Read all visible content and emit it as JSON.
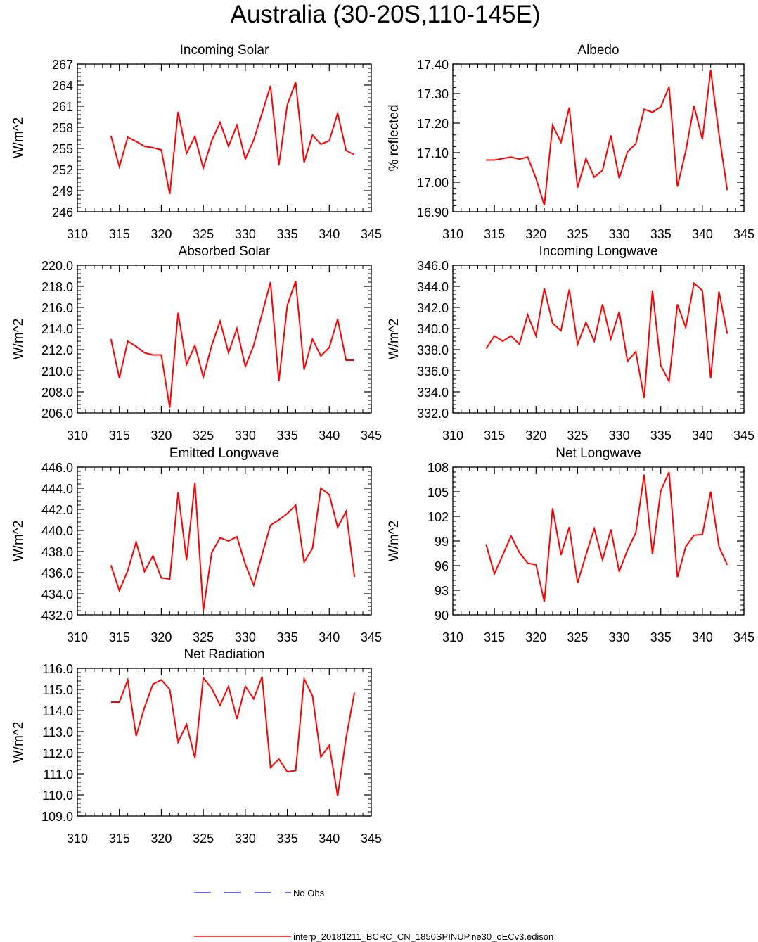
{
  "title": "Australia (30-20S,110-145E)",
  "line_color": "#ff0000",
  "obs_color": "#3333ff",
  "legend": {
    "obs_label": "No Obs",
    "model_label": "interp_20181211_BCRC_CN_1850SPINUP.ne30_oECv3.edison"
  },
  "chart_data": [
    {
      "type": "line",
      "title": "Incoming Solar",
      "ylabel": "W/m^2",
      "xlim": [
        310,
        345
      ],
      "xticks": [
        "310",
        "315",
        "320",
        "325",
        "330",
        "335",
        "340",
        "345"
      ],
      "ylim": [
        246,
        267
      ],
      "yticks": [
        "246",
        "249",
        "252",
        "255",
        "258",
        "261",
        "264",
        "267"
      ],
      "x": [
        314,
        315,
        316,
        317,
        318,
        319,
        320,
        321,
        322,
        323,
        324,
        325,
        326,
        327,
        328,
        329,
        330,
        331,
        332,
        333,
        334,
        335,
        336,
        337,
        338,
        339,
        340,
        341,
        342,
        343
      ],
      "series": [
        {
          "values": [
            256.8,
            252.4,
            256.6,
            256.0,
            255.3,
            255.1,
            254.8,
            248.5,
            260.2,
            254.3,
            256.7,
            252.2,
            256.1,
            258.7,
            255.3,
            258.3,
            253.5,
            256.2,
            260.0,
            263.9,
            252.6,
            261.2,
            264.4,
            253.0,
            256.9,
            255.6,
            256.1,
            260.0,
            254.7,
            254.1
          ]
        }
      ]
    },
    {
      "type": "line",
      "title": "Albedo",
      "ylabel": "% reflected",
      "xlim": [
        310,
        345
      ],
      "xticks": [
        "310",
        "315",
        "320",
        "325",
        "330",
        "335",
        "340",
        "345"
      ],
      "ylim": [
        16.9,
        17.4
      ],
      "yticks": [
        "16.90",
        "17.00",
        "17.10",
        "17.20",
        "17.30",
        "17.40"
      ],
      "x": [
        314,
        315,
        316,
        317,
        318,
        319,
        320,
        321,
        322,
        323,
        324,
        325,
        326,
        327,
        328,
        329,
        330,
        331,
        332,
        333,
        334,
        335,
        336,
        337,
        338,
        339,
        340,
        341,
        342,
        343
      ],
      "series": [
        {
          "values": [
            17.075,
            17.075,
            17.08,
            17.085,
            17.078,
            17.085,
            17.013,
            16.922,
            17.193,
            17.135,
            17.253,
            16.982,
            17.08,
            17.017,
            17.04,
            17.158,
            17.013,
            17.103,
            17.13,
            17.247,
            17.237,
            17.255,
            17.323,
            16.985,
            17.105,
            17.258,
            17.145,
            17.38,
            17.163,
            16.973
          ]
        }
      ]
    },
    {
      "type": "line",
      "title": "Absorbed Solar",
      "ylabel": "W/m^2",
      "xlim": [
        310,
        345
      ],
      "xticks": [
        "310",
        "315",
        "320",
        "325",
        "330",
        "335",
        "340",
        "345"
      ],
      "ylim": [
        206,
        220
      ],
      "yticks": [
        "206.0",
        "208.0",
        "210.0",
        "212.0",
        "214.0",
        "216.0",
        "218.0",
        "220.0"
      ],
      "x": [
        314,
        315,
        316,
        317,
        318,
        319,
        320,
        321,
        322,
        323,
        324,
        325,
        326,
        327,
        328,
        329,
        330,
        331,
        332,
        333,
        334,
        335,
        336,
        337,
        338,
        339,
        340,
        341,
        342,
        343
      ],
      "series": [
        {
          "values": [
            213.0,
            209.3,
            212.8,
            212.3,
            211.7,
            211.5,
            211.5,
            206.5,
            215.5,
            210.6,
            212.4,
            209.4,
            212.4,
            214.7,
            211.7,
            214.0,
            210.4,
            212.4,
            215.4,
            218.4,
            209.0,
            216.2,
            218.5,
            210.1,
            213.0,
            211.4,
            212.2,
            214.9,
            211.0,
            211.0
          ]
        }
      ]
    },
    {
      "type": "line",
      "title": "Incoming Longwave",
      "ylabel": "W/m^2",
      "xlim": [
        310,
        345
      ],
      "xticks": [
        "310",
        "315",
        "320",
        "325",
        "330",
        "335",
        "340",
        "345"
      ],
      "ylim": [
        332,
        346
      ],
      "yticks": [
        "332.0",
        "334.0",
        "336.0",
        "338.0",
        "340.0",
        "342.0",
        "344.0",
        "346.0"
      ],
      "x": [
        314,
        315,
        316,
        317,
        318,
        319,
        320,
        321,
        322,
        323,
        324,
        325,
        326,
        327,
        328,
        329,
        330,
        331,
        332,
        333,
        334,
        335,
        336,
        337,
        338,
        339,
        340,
        341,
        342,
        343
      ],
      "series": [
        {
          "values": [
            338.1,
            339.3,
            338.8,
            339.3,
            338.5,
            341.3,
            339.3,
            343.8,
            340.5,
            339.8,
            343.7,
            338.5,
            340.6,
            338.8,
            342.3,
            339.0,
            341.6,
            336.9,
            337.8,
            333.4,
            343.6,
            336.5,
            335.0,
            342.3,
            340.1,
            344.3,
            343.6,
            335.3,
            343.5,
            339.5
          ]
        }
      ]
    },
    {
      "type": "line",
      "title": "Emitted Longwave",
      "ylabel": "W/m^2",
      "xlim": [
        310,
        345
      ],
      "xticks": [
        "310",
        "315",
        "320",
        "325",
        "330",
        "335",
        "340",
        "345"
      ],
      "ylim": [
        432,
        446
      ],
      "yticks": [
        "432.0",
        "434.0",
        "436.0",
        "438.0",
        "440.0",
        "442.0",
        "444.0",
        "446.0"
      ],
      "x": [
        314,
        315,
        316,
        317,
        318,
        319,
        320,
        321,
        322,
        323,
        324,
        325,
        326,
        327,
        328,
        329,
        330,
        331,
        332,
        333,
        334,
        335,
        336,
        337,
        338,
        339,
        340,
        341,
        342,
        343
      ],
      "series": [
        {
          "values": [
            436.7,
            434.3,
            436.2,
            438.9,
            436.1,
            437.6,
            435.5,
            435.4,
            443.6,
            437.2,
            444.5,
            432.4,
            437.9,
            439.3,
            439.0,
            439.4,
            436.8,
            434.8,
            437.7,
            440.5,
            441.0,
            441.6,
            442.4,
            437.0,
            438.3,
            444.0,
            443.4,
            440.3,
            441.8,
            435.6
          ]
        }
      ]
    },
    {
      "type": "line",
      "title": "Net Longwave",
      "ylabel": "W/m^2",
      "xlim": [
        310,
        345
      ],
      "xticks": [
        "310",
        "315",
        "320",
        "325",
        "330",
        "335",
        "340",
        "345"
      ],
      "ylim": [
        90,
        108
      ],
      "yticks": [
        "90",
        "93",
        "96",
        "99",
        "102",
        "105",
        "108"
      ],
      "x": [
        314,
        315,
        316,
        317,
        318,
        319,
        320,
        321,
        322,
        323,
        324,
        325,
        326,
        327,
        328,
        329,
        330,
        331,
        332,
        333,
        334,
        335,
        336,
        337,
        338,
        339,
        340,
        341,
        342,
        343
      ],
      "series": [
        {
          "values": [
            98.6,
            95.0,
            97.3,
            99.6,
            97.6,
            96.3,
            96.1,
            91.6,
            103.0,
            97.3,
            100.7,
            93.9,
            97.3,
            100.5,
            96.7,
            100.4,
            95.3,
            97.9,
            100.0,
            107.1,
            97.4,
            105.1,
            107.4,
            94.6,
            98.3,
            99.7,
            99.8,
            105.0,
            98.3,
            96.1
          ]
        }
      ]
    },
    {
      "type": "line",
      "title": "Net Radiation",
      "ylabel": "W/m^2",
      "xlim": [
        310,
        345
      ],
      "xticks": [
        "310",
        "315",
        "320",
        "325",
        "330",
        "335",
        "340",
        "345"
      ],
      "ylim": [
        109,
        116
      ],
      "yticks": [
        "109.0",
        "110.0",
        "111.0",
        "112.0",
        "113.0",
        "114.0",
        "115.0",
        "116.0"
      ],
      "x": [
        314,
        315,
        316,
        317,
        318,
        319,
        320,
        321,
        322,
        323,
        324,
        325,
        326,
        327,
        328,
        329,
        330,
        331,
        332,
        333,
        334,
        335,
        336,
        337,
        338,
        339,
        340,
        341,
        342,
        343
      ],
      "series": [
        {
          "values": [
            114.4,
            114.4,
            115.45,
            112.8,
            114.15,
            115.25,
            115.45,
            115.0,
            112.5,
            113.35,
            111.75,
            115.55,
            115.05,
            114.25,
            115.15,
            113.6,
            115.15,
            114.55,
            115.6,
            111.3,
            111.7,
            111.1,
            111.15,
            115.5,
            114.7,
            111.8,
            112.35,
            109.95,
            112.7,
            114.85
          ]
        }
      ]
    }
  ]
}
